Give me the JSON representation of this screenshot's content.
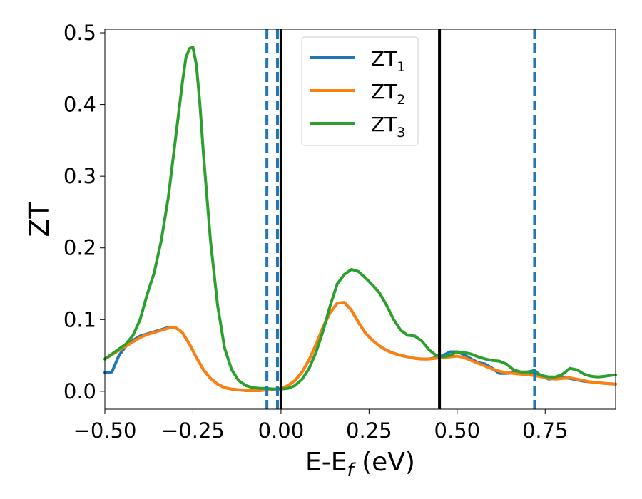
{
  "chart_data": {
    "type": "line",
    "xlabel": "E-E",
    "xlabel_sub": "f",
    "xlabel_unit": " (eV)",
    "ylabel": "ZT",
    "xlim": [
      -0.5,
      0.95
    ],
    "ylim": [
      -0.025,
      0.505
    ],
    "xticks": [
      -0.5,
      -0.25,
      0.0,
      0.25,
      0.5,
      0.75
    ],
    "xtick_labels": [
      "−0.50",
      "−0.25",
      "0.00",
      "0.25",
      "0.50",
      "0.75"
    ],
    "yticks": [
      0.0,
      0.1,
      0.2,
      0.3,
      0.4,
      0.5
    ],
    "ytick_labels": [
      "0.0",
      "0.1",
      "0.2",
      "0.3",
      "0.4",
      "0.5"
    ],
    "grid": false,
    "legend_position": "upper-center",
    "series": [
      {
        "name": "ZT",
        "subscript": "1",
        "color": "#1f77b4",
        "x": [
          -0.5,
          -0.48,
          -0.46,
          -0.44,
          -0.42,
          -0.4,
          -0.38,
          -0.36,
          -0.34,
          -0.32,
          -0.3,
          -0.28,
          -0.26,
          -0.24,
          -0.22,
          -0.2,
          -0.18,
          -0.16,
          -0.14,
          -0.12,
          -0.1,
          -0.08,
          -0.06,
          -0.04,
          -0.02,
          0.0,
          0.02,
          0.04,
          0.06,
          0.08,
          0.1,
          0.12,
          0.14,
          0.16,
          0.18,
          0.2,
          0.22,
          0.24,
          0.26,
          0.28,
          0.3,
          0.32,
          0.34,
          0.36,
          0.38,
          0.4,
          0.42,
          0.44,
          0.46,
          0.48,
          0.5,
          0.52,
          0.54,
          0.56,
          0.58,
          0.6,
          0.62,
          0.64,
          0.66,
          0.68,
          0.7,
          0.72,
          0.74,
          0.76,
          0.78,
          0.8,
          0.82,
          0.84,
          0.86,
          0.88,
          0.9,
          0.92,
          0.95
        ],
        "y": [
          0.026,
          0.027,
          0.05,
          0.063,
          0.071,
          0.077,
          0.08,
          0.083,
          0.086,
          0.089,
          0.089,
          0.082,
          0.066,
          0.047,
          0.03,
          0.018,
          0.01,
          0.005,
          0.003,
          0.002,
          0.001,
          0.001,
          0.001,
          0.002,
          0.003,
          0.004,
          0.008,
          0.015,
          0.027,
          0.044,
          0.066,
          0.09,
          0.11,
          0.123,
          0.124,
          0.113,
          0.096,
          0.081,
          0.071,
          0.063,
          0.057,
          0.053,
          0.05,
          0.048,
          0.046,
          0.045,
          0.045,
          0.047,
          0.05,
          0.055,
          0.055,
          0.051,
          0.045,
          0.04,
          0.038,
          0.032,
          0.025,
          0.025,
          0.026,
          0.025,
          0.027,
          0.029,
          0.021,
          0.017,
          0.018,
          0.019,
          0.018,
          0.016,
          0.014,
          0.013,
          0.012,
          0.011,
          0.01
        ]
      },
      {
        "name": "ZT",
        "subscript": "2",
        "color": "#ff7f0e",
        "x": [
          -0.5,
          -0.48,
          -0.46,
          -0.44,
          -0.42,
          -0.4,
          -0.38,
          -0.36,
          -0.34,
          -0.32,
          -0.3,
          -0.28,
          -0.26,
          -0.24,
          -0.22,
          -0.2,
          -0.18,
          -0.16,
          -0.14,
          -0.12,
          -0.1,
          -0.08,
          -0.06,
          -0.04,
          -0.02,
          0.0,
          0.02,
          0.04,
          0.06,
          0.08,
          0.1,
          0.12,
          0.14,
          0.16,
          0.18,
          0.2,
          0.22,
          0.24,
          0.26,
          0.28,
          0.3,
          0.32,
          0.34,
          0.36,
          0.38,
          0.4,
          0.42,
          0.44,
          0.46,
          0.48,
          0.5,
          0.52,
          0.54,
          0.56,
          0.58,
          0.6,
          0.62,
          0.64,
          0.66,
          0.68,
          0.7,
          0.72,
          0.74,
          0.76,
          0.78,
          0.8,
          0.82,
          0.84,
          0.86,
          0.88,
          0.9,
          0.92,
          0.95
        ],
        "y": [
          0.045,
          0.051,
          0.057,
          0.063,
          0.069,
          0.075,
          0.079,
          0.082,
          0.085,
          0.088,
          0.089,
          0.082,
          0.066,
          0.047,
          0.03,
          0.018,
          0.01,
          0.005,
          0.003,
          0.002,
          0.001,
          0.001,
          0.001,
          0.002,
          0.003,
          0.004,
          0.008,
          0.015,
          0.027,
          0.044,
          0.066,
          0.09,
          0.11,
          0.123,
          0.124,
          0.113,
          0.096,
          0.081,
          0.071,
          0.063,
          0.057,
          0.053,
          0.05,
          0.048,
          0.046,
          0.045,
          0.045,
          0.046,
          0.047,
          0.048,
          0.049,
          0.047,
          0.043,
          0.039,
          0.035,
          0.031,
          0.028,
          0.026,
          0.025,
          0.024,
          0.023,
          0.022,
          0.02,
          0.018,
          0.017,
          0.018,
          0.019,
          0.017,
          0.015,
          0.013,
          0.012,
          0.011,
          0.01
        ]
      },
      {
        "name": "ZT",
        "subscript": "3",
        "color": "#2ca02c",
        "x": [
          -0.5,
          -0.48,
          -0.46,
          -0.44,
          -0.42,
          -0.4,
          -0.38,
          -0.36,
          -0.34,
          -0.32,
          -0.3,
          -0.28,
          -0.27,
          -0.26,
          -0.25,
          -0.24,
          -0.23,
          -0.22,
          -0.2,
          -0.18,
          -0.16,
          -0.14,
          -0.12,
          -0.1,
          -0.08,
          -0.06,
          -0.04,
          -0.02,
          0.0,
          0.02,
          0.04,
          0.06,
          0.08,
          0.1,
          0.12,
          0.14,
          0.16,
          0.18,
          0.2,
          0.22,
          0.24,
          0.26,
          0.28,
          0.3,
          0.32,
          0.34,
          0.36,
          0.38,
          0.4,
          0.42,
          0.44,
          0.46,
          0.48,
          0.5,
          0.52,
          0.54,
          0.56,
          0.58,
          0.6,
          0.62,
          0.64,
          0.66,
          0.68,
          0.7,
          0.72,
          0.74,
          0.76,
          0.78,
          0.8,
          0.82,
          0.84,
          0.86,
          0.88,
          0.9,
          0.92,
          0.95
        ],
        "y": [
          0.045,
          0.052,
          0.059,
          0.066,
          0.078,
          0.1,
          0.135,
          0.165,
          0.21,
          0.27,
          0.35,
          0.43,
          0.465,
          0.478,
          0.48,
          0.455,
          0.4,
          0.33,
          0.21,
          0.12,
          0.06,
          0.03,
          0.015,
          0.008,
          0.005,
          0.004,
          0.004,
          0.003,
          0.003,
          0.004,
          0.008,
          0.017,
          0.032,
          0.055,
          0.085,
          0.12,
          0.15,
          0.163,
          0.17,
          0.167,
          0.158,
          0.148,
          0.137,
          0.12,
          0.1,
          0.085,
          0.078,
          0.077,
          0.07,
          0.058,
          0.05,
          0.048,
          0.05,
          0.055,
          0.054,
          0.052,
          0.048,
          0.045,
          0.043,
          0.042,
          0.038,
          0.03,
          0.027,
          0.027,
          0.026,
          0.022,
          0.02,
          0.02,
          0.024,
          0.032,
          0.03,
          0.024,
          0.021,
          0.02,
          0.021,
          0.023
        ]
      }
    ],
    "vlines": [
      {
        "x": -0.04,
        "style": "dashed",
        "color": "#1f77b4"
      },
      {
        "x": -0.01,
        "style": "dashed",
        "color": "#1f77b4"
      },
      {
        "x": 0.72,
        "style": "dashed",
        "color": "#1f77b4"
      },
      {
        "x": 0.0,
        "style": "solid",
        "color": "#000000"
      },
      {
        "x": 0.45,
        "style": "solid",
        "color": "#000000"
      }
    ]
  }
}
